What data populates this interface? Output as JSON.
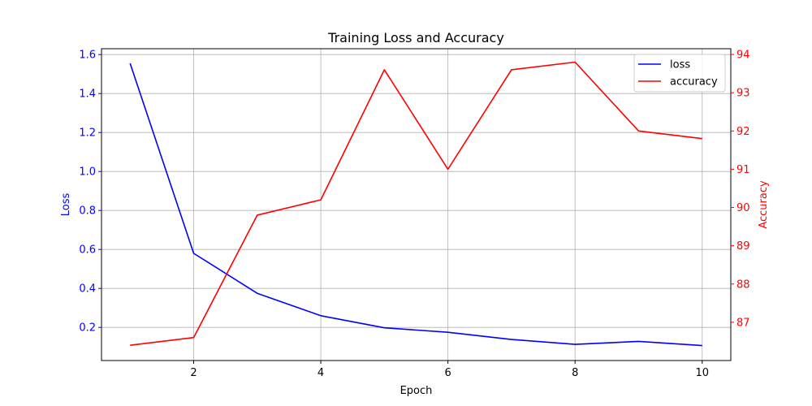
{
  "chart_data": {
    "type": "line",
    "title": "Training Loss and Accuracy",
    "xlabel": "Epoch",
    "x": [
      1,
      2,
      3,
      4,
      5,
      6,
      7,
      8,
      9,
      10
    ],
    "xlim": [
      0.55,
      10.45
    ],
    "xticks": [
      2,
      4,
      6,
      8,
      10
    ],
    "xtick_labels": [
      "2",
      "4",
      "6",
      "8",
      "10"
    ],
    "y_left": {
      "label": "Loss",
      "color": "#0000ff",
      "lim": [
        0.03,
        1.63
      ],
      "ticks": [
        0.2,
        0.4,
        0.6,
        0.8,
        1.0,
        1.2,
        1.4,
        1.6
      ],
      "tick_labels": [
        "0.2",
        "0.4",
        "0.6",
        "0.8",
        "1.0",
        "1.2",
        "1.4",
        "1.6"
      ]
    },
    "y_right": {
      "label": "Accuracy",
      "color": "#ff0000",
      "lim": [
        86.0,
        94.15
      ],
      "ticks": [
        87,
        88,
        89,
        90,
        91,
        92,
        93,
        94
      ],
      "tick_labels": [
        "87",
        "88",
        "89",
        "90",
        "91",
        "92",
        "93",
        "94"
      ]
    },
    "grid": true,
    "legend_position": "top-right",
    "series": [
      {
        "name": "loss",
        "axis": "left",
        "color": "#0000ff",
        "values": [
          1.555,
          0.58,
          0.375,
          0.26,
          0.198,
          0.175,
          0.138,
          0.113,
          0.128,
          0.107
        ]
      },
      {
        "name": "accuracy",
        "axis": "right",
        "color": "#ff0000",
        "values": [
          86.4,
          86.6,
          89.8,
          90.2,
          93.6,
          91.0,
          93.6,
          93.8,
          92.0,
          91.8
        ]
      }
    ]
  }
}
